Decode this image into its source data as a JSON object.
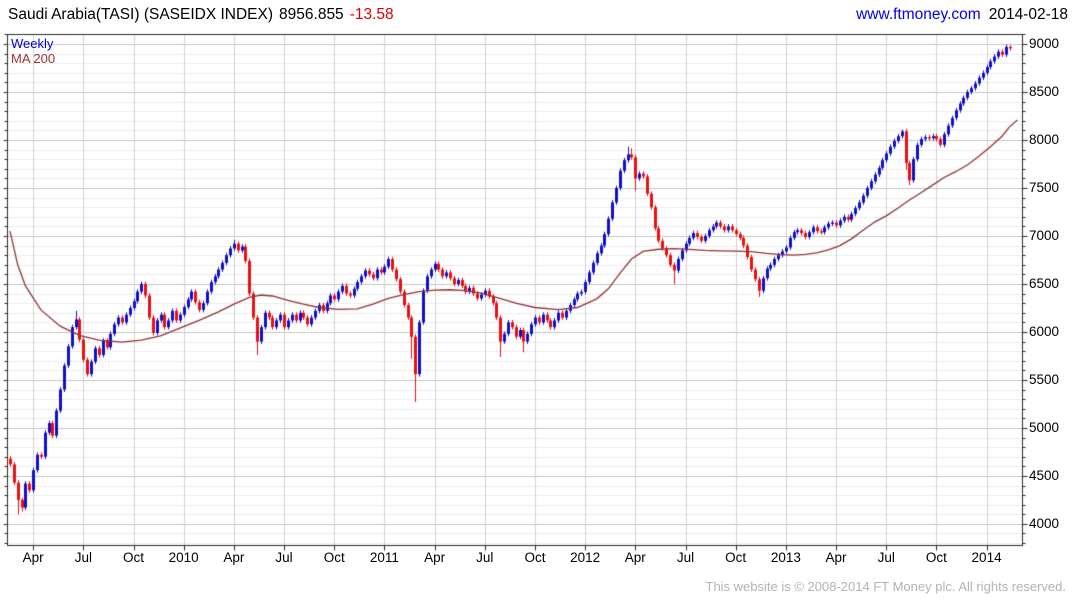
{
  "header": {
    "title": "Saudi Arabia(TASI) (SASEIDX INDEX)",
    "price": "8956.855",
    "change": "-13.58",
    "site": "www.ftmoney.com",
    "date": "2014-02-18"
  },
  "legend": {
    "timeframe": "Weekly",
    "ma": "MA 200"
  },
  "footer": {
    "copyright": "This website is © 2008-2014 FT Money plc. All rights reserved."
  },
  "chart_data": {
    "type": "candlestick",
    "timeframe": "weekly",
    "title": "Saudi Arabia(TASI) (SASEIDX INDEX)",
    "last_close": 8956.855,
    "change": -13.58,
    "ylim": [
      3780,
      9105
    ],
    "y_ticks": [
      4000,
      4500,
      5000,
      5500,
      6000,
      6500,
      7000,
      7500,
      8000,
      8500,
      9000
    ],
    "y_minor_step": 100,
    "x_tick_labels": [
      "Apr",
      "Jul",
      "Oct",
      "2010",
      "Apr",
      "Jul",
      "Oct",
      "2011",
      "Apr",
      "Jul",
      "Oct",
      "2012",
      "Apr",
      "Jul",
      "Oct",
      "2013",
      "Apr",
      "Jul",
      "Oct",
      "2014"
    ],
    "tick_weeks": [
      6,
      19,
      32,
      45,
      58,
      71,
      84,
      97,
      110,
      123,
      136,
      149,
      162,
      175,
      188,
      201,
      214,
      227,
      240,
      253
    ],
    "x0": 10,
    "dx": 3.86,
    "first_open": 4680,
    "wick_pad": 25,
    "closes": [
      4620,
      4430,
      4250,
      4170,
      4420,
      4350,
      4560,
      4720,
      4700,
      4950,
      5050,
      4920,
      5180,
      5400,
      5650,
      5850,
      6050,
      6130,
      5920,
      5710,
      5560,
      5690,
      5830,
      5760,
      5910,
      5840,
      5980,
      6080,
      6150,
      6100,
      6180,
      6250,
      6320,
      6420,
      6500,
      6380,
      6150,
      5990,
      6120,
      6180,
      6050,
      6120,
      6220,
      6120,
      6180,
      6260,
      6340,
      6420,
      6310,
      6230,
      6300,
      6420,
      6520,
      6580,
      6650,
      6720,
      6800,
      6870,
      6920,
      6850,
      6890,
      6740,
      6400,
      6150,
      5900,
      6050,
      6200,
      6150,
      6050,
      6120,
      6180,
      6050,
      6120,
      6180,
      6120,
      6200,
      6150,
      6080,
      6150,
      6220,
      6280,
      6220,
      6300,
      6380,
      6340,
      6420,
      6480,
      6400,
      6380,
      6450,
      6520,
      6580,
      6640,
      6600,
      6560,
      6650,
      6620,
      6680,
      6760,
      6650,
      6550,
      6420,
      6280,
      6150,
      5950,
      5560,
      6100,
      6430,
      6580,
      6650,
      6710,
      6650,
      6580,
      6620,
      6560,
      6500,
      6540,
      6480,
      6420,
      6460,
      6400,
      6350,
      6390,
      6430,
      6370,
      6300,
      6150,
      5900,
      5980,
      6100,
      6050,
      5950,
      6020,
      5900,
      5980,
      6080,
      6150,
      6100,
      6180,
      6120,
      6050,
      6120,
      6200,
      6150,
      6220,
      6280,
      6340,
      6400,
      6418,
      6520,
      6620,
      6720,
      6820,
      6900,
      7020,
      7180,
      7350,
      7500,
      7680,
      7790,
      7850,
      7820,
      7600,
      7650,
      7620,
      7440,
      7300,
      7080,
      6950,
      6870,
      6800,
      6700,
      6640,
      6760,
      6850,
      6920,
      6980,
      7030,
      6990,
      6950,
      7000,
      7060,
      7100,
      7140,
      7100,
      7060,
      7100,
      7060,
      7020,
      6980,
      6900,
      6780,
      6650,
      6550,
      6430,
      6560,
      6660,
      6700,
      6760,
      6800,
      6840,
      6880,
      6980,
      7040,
      7060,
      7030,
      6990,
      7040,
      7090,
      7050,
      7040,
      7090,
      7130,
      7140,
      7110,
      7160,
      7200,
      7170,
      7230,
      7290,
      7350,
      7420,
      7500,
      7570,
      7640,
      7710,
      7790,
      7860,
      7930,
      7990,
      8040,
      8090,
      7760,
      7580,
      7800,
      7950,
      8010,
      8030,
      8020,
      8040,
      8010,
      7950,
      8060,
      8150,
      8230,
      8310,
      8380,
      8440,
      8500,
      8540,
      8590,
      8650,
      8700,
      8760,
      8820,
      8870,
      8920,
      8890,
      8970,
      8957
    ],
    "wick_overrides": {
      "2": {
        "low": 4100
      },
      "3": {
        "low": 4130
      },
      "17": {
        "high": 6220
      },
      "58": {
        "high": 6960
      },
      "64": {
        "low": 5760
      },
      "104": {
        "low": 5720
      },
      "105": {
        "low": 5270
      },
      "127": {
        "low": 5740
      },
      "133": {
        "low": 5790
      },
      "160": {
        "high": 7930
      },
      "161": {
        "high": 7915
      },
      "162": {
        "low": 7470
      },
      "172": {
        "low": 6500
      },
      "194": {
        "low": 6365
      },
      "231": {
        "high": 8110
      },
      "232": {
        "low": 7690
      },
      "233": {
        "low": 7530
      },
      "259": {
        "high": 8990
      }
    },
    "ma200": [
      [
        0,
        7050
      ],
      [
        2,
        6700
      ],
      [
        4,
        6480
      ],
      [
        8,
        6230
      ],
      [
        13,
        6060
      ],
      [
        18,
        5965
      ],
      [
        23,
        5915
      ],
      [
        29,
        5895
      ],
      [
        34,
        5915
      ],
      [
        39,
        5960
      ],
      [
        44,
        6040
      ],
      [
        49,
        6120
      ],
      [
        54,
        6210
      ],
      [
        58,
        6290
      ],
      [
        62,
        6360
      ],
      [
        65,
        6385
      ],
      [
        68,
        6375
      ],
      [
        72,
        6330
      ],
      [
        76,
        6290
      ],
      [
        80,
        6255
      ],
      [
        85,
        6235
      ],
      [
        90,
        6240
      ],
      [
        94,
        6290
      ],
      [
        98,
        6350
      ],
      [
        102,
        6390
      ],
      [
        106,
        6420
      ],
      [
        110,
        6435
      ],
      [
        114,
        6440
      ],
      [
        118,
        6430
      ],
      [
        122,
        6405
      ],
      [
        126,
        6360
      ],
      [
        131,
        6300
      ],
      [
        136,
        6255
      ],
      [
        142,
        6232
      ],
      [
        147,
        6255
      ],
      [
        152,
        6345
      ],
      [
        155,
        6450
      ],
      [
        158,
        6610
      ],
      [
        161,
        6760
      ],
      [
        164,
        6840
      ],
      [
        168,
        6862
      ],
      [
        172,
        6868
      ],
      [
        176,
        6860
      ],
      [
        180,
        6850
      ],
      [
        184,
        6845
      ],
      [
        188,
        6843
      ],
      [
        192,
        6838
      ],
      [
        196,
        6820
      ],
      [
        200,
        6806
      ],
      [
        203,
        6800
      ],
      [
        206,
        6808
      ],
      [
        209,
        6825
      ],
      [
        212,
        6855
      ],
      [
        215,
        6900
      ],
      [
        218,
        6970
      ],
      [
        221,
        7060
      ],
      [
        224,
        7145
      ],
      [
        227,
        7210
      ],
      [
        230,
        7290
      ],
      [
        233,
        7375
      ],
      [
        236,
        7450
      ],
      [
        239,
        7530
      ],
      [
        242,
        7610
      ],
      [
        245,
        7670
      ],
      [
        248,
        7740
      ],
      [
        251,
        7830
      ],
      [
        254,
        7930
      ],
      [
        257,
        8040
      ],
      [
        259,
        8140
      ],
      [
        261,
        8210
      ]
    ],
    "colors": {
      "up": "#1010c8",
      "down": "#e81010",
      "ma": "#8f3333",
      "grid_minor": "#ededed",
      "grid_major": "#c6c6c6",
      "grid_vertical": "#d2d2d2",
      "axis": "#2a2a2a"
    },
    "legend_position": "top-left",
    "grid": true
  }
}
